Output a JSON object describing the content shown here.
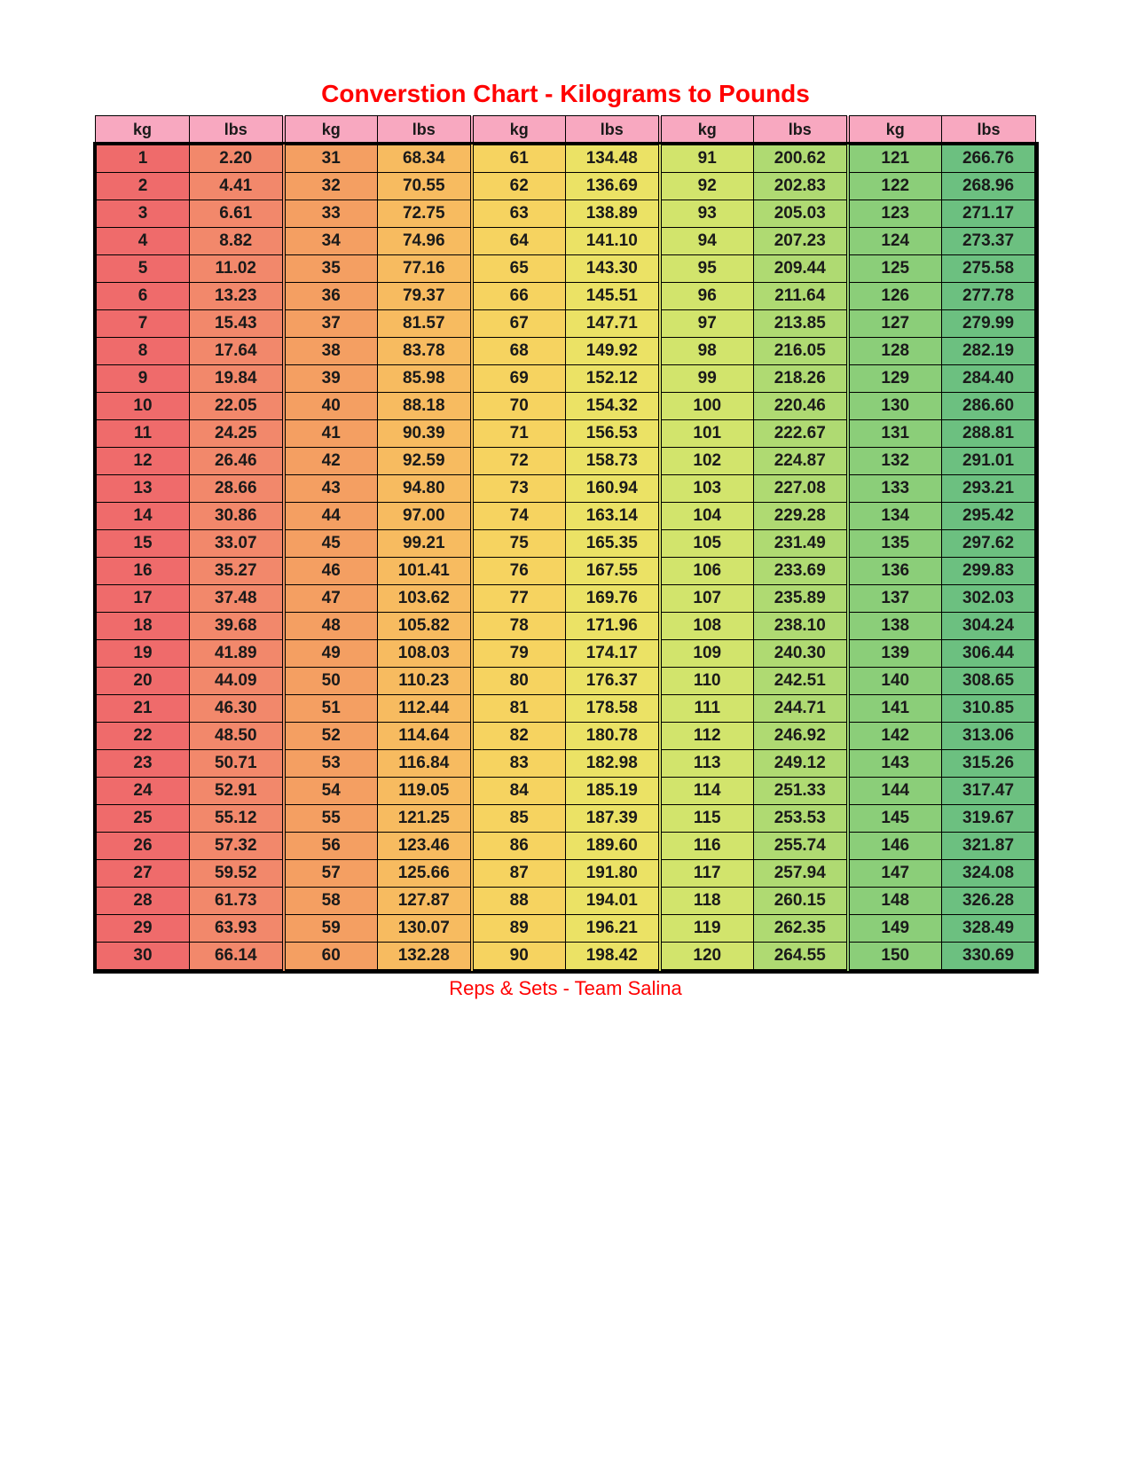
{
  "title": "Converstion Chart - Kilograms to Pounds",
  "subtitle": "Reps & Sets - Team Salina",
  "header_labels": {
    "kg": "kg",
    "lbs": "lbs"
  },
  "header_bg": "#f8a8c0",
  "title_color": "#ff0000",
  "subtitle_color": "#ff0000",
  "text_color": "#1a1a1a",
  "border_color": "#000000",
  "font_family": "Arial",
  "title_fontsize": 28,
  "cell_fontsize": 19,
  "column_groups": 5,
  "rows_per_group": 30,
  "kg_range": [
    1,
    150
  ],
  "conversion_factor": 2.20462,
  "lbs_decimals": 2,
  "gradient_colors": {
    "col0_kg": "#f07070",
    "col0_lbs": "#f28870",
    "col1_kg": "#f5a060",
    "col1_lbs": "#f8c060",
    "col2_kg": "#f5d860",
    "col2_lbs": "#e8e870",
    "col3_kg": "#c8e070",
    "col3_lbs": "#a8d878",
    "col4_kg": "#88c878",
    "col4_lbs": "#70c080"
  },
  "data": [
    {
      "kg": 1,
      "lbs": "2.20"
    },
    {
      "kg": 2,
      "lbs": "4.41"
    },
    {
      "kg": 3,
      "lbs": "6.61"
    },
    {
      "kg": 4,
      "lbs": "8.82"
    },
    {
      "kg": 5,
      "lbs": "11.02"
    },
    {
      "kg": 6,
      "lbs": "13.23"
    },
    {
      "kg": 7,
      "lbs": "15.43"
    },
    {
      "kg": 8,
      "lbs": "17.64"
    },
    {
      "kg": 9,
      "lbs": "19.84"
    },
    {
      "kg": 10,
      "lbs": "22.05"
    },
    {
      "kg": 11,
      "lbs": "24.25"
    },
    {
      "kg": 12,
      "lbs": "26.46"
    },
    {
      "kg": 13,
      "lbs": "28.66"
    },
    {
      "kg": 14,
      "lbs": "30.86"
    },
    {
      "kg": 15,
      "lbs": "33.07"
    },
    {
      "kg": 16,
      "lbs": "35.27"
    },
    {
      "kg": 17,
      "lbs": "37.48"
    },
    {
      "kg": 18,
      "lbs": "39.68"
    },
    {
      "kg": 19,
      "lbs": "41.89"
    },
    {
      "kg": 20,
      "lbs": "44.09"
    },
    {
      "kg": 21,
      "lbs": "46.30"
    },
    {
      "kg": 22,
      "lbs": "48.50"
    },
    {
      "kg": 23,
      "lbs": "50.71"
    },
    {
      "kg": 24,
      "lbs": "52.91"
    },
    {
      "kg": 25,
      "lbs": "55.12"
    },
    {
      "kg": 26,
      "lbs": "57.32"
    },
    {
      "kg": 27,
      "lbs": "59.52"
    },
    {
      "kg": 28,
      "lbs": "61.73"
    },
    {
      "kg": 29,
      "lbs": "63.93"
    },
    {
      "kg": 30,
      "lbs": "66.14"
    },
    {
      "kg": 31,
      "lbs": "68.34"
    },
    {
      "kg": 32,
      "lbs": "70.55"
    },
    {
      "kg": 33,
      "lbs": "72.75"
    },
    {
      "kg": 34,
      "lbs": "74.96"
    },
    {
      "kg": 35,
      "lbs": "77.16"
    },
    {
      "kg": 36,
      "lbs": "79.37"
    },
    {
      "kg": 37,
      "lbs": "81.57"
    },
    {
      "kg": 38,
      "lbs": "83.78"
    },
    {
      "kg": 39,
      "lbs": "85.98"
    },
    {
      "kg": 40,
      "lbs": "88.18"
    },
    {
      "kg": 41,
      "lbs": "90.39"
    },
    {
      "kg": 42,
      "lbs": "92.59"
    },
    {
      "kg": 43,
      "lbs": "94.80"
    },
    {
      "kg": 44,
      "lbs": "97.00"
    },
    {
      "kg": 45,
      "lbs": "99.21"
    },
    {
      "kg": 46,
      "lbs": "101.41"
    },
    {
      "kg": 47,
      "lbs": "103.62"
    },
    {
      "kg": 48,
      "lbs": "105.82"
    },
    {
      "kg": 49,
      "lbs": "108.03"
    },
    {
      "kg": 50,
      "lbs": "110.23"
    },
    {
      "kg": 51,
      "lbs": "112.44"
    },
    {
      "kg": 52,
      "lbs": "114.64"
    },
    {
      "kg": 53,
      "lbs": "116.84"
    },
    {
      "kg": 54,
      "lbs": "119.05"
    },
    {
      "kg": 55,
      "lbs": "121.25"
    },
    {
      "kg": 56,
      "lbs": "123.46"
    },
    {
      "kg": 57,
      "lbs": "125.66"
    },
    {
      "kg": 58,
      "lbs": "127.87"
    },
    {
      "kg": 59,
      "lbs": "130.07"
    },
    {
      "kg": 60,
      "lbs": "132.28"
    },
    {
      "kg": 61,
      "lbs": "134.48"
    },
    {
      "kg": 62,
      "lbs": "136.69"
    },
    {
      "kg": 63,
      "lbs": "138.89"
    },
    {
      "kg": 64,
      "lbs": "141.10"
    },
    {
      "kg": 65,
      "lbs": "143.30"
    },
    {
      "kg": 66,
      "lbs": "145.51"
    },
    {
      "kg": 67,
      "lbs": "147.71"
    },
    {
      "kg": 68,
      "lbs": "149.92"
    },
    {
      "kg": 69,
      "lbs": "152.12"
    },
    {
      "kg": 70,
      "lbs": "154.32"
    },
    {
      "kg": 71,
      "lbs": "156.53"
    },
    {
      "kg": 72,
      "lbs": "158.73"
    },
    {
      "kg": 73,
      "lbs": "160.94"
    },
    {
      "kg": 74,
      "lbs": "163.14"
    },
    {
      "kg": 75,
      "lbs": "165.35"
    },
    {
      "kg": 76,
      "lbs": "167.55"
    },
    {
      "kg": 77,
      "lbs": "169.76"
    },
    {
      "kg": 78,
      "lbs": "171.96"
    },
    {
      "kg": 79,
      "lbs": "174.17"
    },
    {
      "kg": 80,
      "lbs": "176.37"
    },
    {
      "kg": 81,
      "lbs": "178.58"
    },
    {
      "kg": 82,
      "lbs": "180.78"
    },
    {
      "kg": 83,
      "lbs": "182.98"
    },
    {
      "kg": 84,
      "lbs": "185.19"
    },
    {
      "kg": 85,
      "lbs": "187.39"
    },
    {
      "kg": 86,
      "lbs": "189.60"
    },
    {
      "kg": 87,
      "lbs": "191.80"
    },
    {
      "kg": 88,
      "lbs": "194.01"
    },
    {
      "kg": 89,
      "lbs": "196.21"
    },
    {
      "kg": 90,
      "lbs": "198.42"
    },
    {
      "kg": 91,
      "lbs": "200.62"
    },
    {
      "kg": 92,
      "lbs": "202.83"
    },
    {
      "kg": 93,
      "lbs": "205.03"
    },
    {
      "kg": 94,
      "lbs": "207.23"
    },
    {
      "kg": 95,
      "lbs": "209.44"
    },
    {
      "kg": 96,
      "lbs": "211.64"
    },
    {
      "kg": 97,
      "lbs": "213.85"
    },
    {
      "kg": 98,
      "lbs": "216.05"
    },
    {
      "kg": 99,
      "lbs": "218.26"
    },
    {
      "kg": 100,
      "lbs": "220.46"
    },
    {
      "kg": 101,
      "lbs": "222.67"
    },
    {
      "kg": 102,
      "lbs": "224.87"
    },
    {
      "kg": 103,
      "lbs": "227.08"
    },
    {
      "kg": 104,
      "lbs": "229.28"
    },
    {
      "kg": 105,
      "lbs": "231.49"
    },
    {
      "kg": 106,
      "lbs": "233.69"
    },
    {
      "kg": 107,
      "lbs": "235.89"
    },
    {
      "kg": 108,
      "lbs": "238.10"
    },
    {
      "kg": 109,
      "lbs": "240.30"
    },
    {
      "kg": 110,
      "lbs": "242.51"
    },
    {
      "kg": 111,
      "lbs": "244.71"
    },
    {
      "kg": 112,
      "lbs": "246.92"
    },
    {
      "kg": 113,
      "lbs": "249.12"
    },
    {
      "kg": 114,
      "lbs": "251.33"
    },
    {
      "kg": 115,
      "lbs": "253.53"
    },
    {
      "kg": 116,
      "lbs": "255.74"
    },
    {
      "kg": 117,
      "lbs": "257.94"
    },
    {
      "kg": 118,
      "lbs": "260.15"
    },
    {
      "kg": 119,
      "lbs": "262.35"
    },
    {
      "kg": 120,
      "lbs": "264.55"
    },
    {
      "kg": 121,
      "lbs": "266.76"
    },
    {
      "kg": 122,
      "lbs": "268.96"
    },
    {
      "kg": 123,
      "lbs": "271.17"
    },
    {
      "kg": 124,
      "lbs": "273.37"
    },
    {
      "kg": 125,
      "lbs": "275.58"
    },
    {
      "kg": 126,
      "lbs": "277.78"
    },
    {
      "kg": 127,
      "lbs": "279.99"
    },
    {
      "kg": 128,
      "lbs": "282.19"
    },
    {
      "kg": 129,
      "lbs": "284.40"
    },
    {
      "kg": 130,
      "lbs": "286.60"
    },
    {
      "kg": 131,
      "lbs": "288.81"
    },
    {
      "kg": 132,
      "lbs": "291.01"
    },
    {
      "kg": 133,
      "lbs": "293.21"
    },
    {
      "kg": 134,
      "lbs": "295.42"
    },
    {
      "kg": 135,
      "lbs": "297.62"
    },
    {
      "kg": 136,
      "lbs": "299.83"
    },
    {
      "kg": 137,
      "lbs": "302.03"
    },
    {
      "kg": 138,
      "lbs": "304.24"
    },
    {
      "kg": 139,
      "lbs": "306.44"
    },
    {
      "kg": 140,
      "lbs": "308.65"
    },
    {
      "kg": 141,
      "lbs": "310.85"
    },
    {
      "kg": 142,
      "lbs": "313.06"
    },
    {
      "kg": 143,
      "lbs": "315.26"
    },
    {
      "kg": 144,
      "lbs": "317.47"
    },
    {
      "kg": 145,
      "lbs": "319.67"
    },
    {
      "kg": 146,
      "lbs": "321.87"
    },
    {
      "kg": 147,
      "lbs": "324.08"
    },
    {
      "kg": 148,
      "lbs": "326.28"
    },
    {
      "kg": 149,
      "lbs": "328.49"
    },
    {
      "kg": 150,
      "lbs": "330.69"
    }
  ]
}
